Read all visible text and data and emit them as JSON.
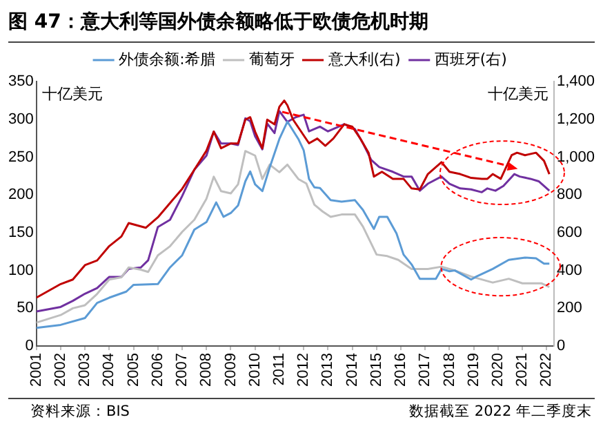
{
  "chart_data": {
    "type": "line",
    "title": "图 47：意大利等国外债余额略低于欧债危机时期",
    "ylabel": "十亿美元",
    "y2label": "十亿美元",
    "annotations": [
      "资料来源：BIS",
      "数据截至 2022 年二季度末"
    ],
    "xlim": [
      2001,
      2022.3
    ],
    "xticks": [
      2001,
      2002,
      2003,
      2004,
      2005,
      2006,
      2007,
      2008,
      2009,
      2010,
      2011,
      2012,
      2013,
      2014,
      2015,
      2016,
      2017,
      2018,
      2019,
      2020,
      2021,
      2022
    ],
    "ylim": [
      0,
      350
    ],
    "yticks": [
      0,
      50,
      100,
      150,
      200,
      250,
      300,
      350
    ],
    "y2lim": [
      0,
      1400
    ],
    "y2ticks": [
      0,
      200,
      400,
      600,
      800,
      {
        "value": 1000,
        "label": "1,000"
      },
      {
        "value": 1200,
        "label": "1,200"
      },
      {
        "value": 1400,
        "label": "1,400"
      }
    ],
    "legend": "top",
    "grid": false,
    "marker": "none",
    "line_style": "solid",
    "series": [
      {
        "name": "外债余额:希腊",
        "color": "#5b9bd5",
        "x": [
          2001,
          2002,
          2003,
          2003.5,
          2004,
          2004.7,
          2005,
          2006,
          2006.5,
          2007,
          2007.5,
          2008,
          2008.4,
          2008.7,
          2009,
          2009.3,
          2009.6,
          2009.8,
          2010,
          2010.3,
          2010.6,
          2011,
          2011.33,
          2011.78,
          2012,
          2012.22,
          2012.44,
          2012.67,
          2013.11,
          2013.56,
          2014.11,
          2014.44,
          2014.89,
          2015.11,
          2015.44,
          2015.82,
          2016.11,
          2016.44,
          2016.78,
          2017.44,
          2017.67,
          2018,
          2018.22,
          2018.89,
          2019.11,
          2019.78,
          2020.44,
          2021.11,
          2021.56,
          2021.89,
          2022.11
        ],
        "values": [
          24,
          28,
          37,
          57,
          64,
          72,
          81,
          82,
          104,
          120,
          154,
          164,
          190,
          171,
          176,
          186,
          218,
          231,
          214,
          205,
          236,
          274,
          297,
          274,
          259,
          221,
          210,
          209,
          193,
          191,
          193,
          180,
          155,
          171,
          171,
          149,
          121,
          108,
          89,
          89,
          102,
          99,
          100,
          88,
          92,
          102,
          114,
          117,
          116,
          109,
          109
        ]
      },
      {
        "name": "葡萄牙",
        "color": "#bfbfbf",
        "x": [
          2001,
          2002,
          2002.5,
          2003,
          2003.5,
          2004,
          2004.5,
          2004.8,
          2005.3,
          2005.6,
          2006,
          2006.5,
          2007,
          2007.5,
          2008,
          2008.3,
          2008.6,
          2009,
          2009.3,
          2009.6,
          2010,
          2010.3,
          2010.6,
          2011,
          2011.33,
          2011.78,
          2012.11,
          2012.44,
          2012.78,
          2013.11,
          2013.56,
          2014.11,
          2014.44,
          2015.0,
          2015.44,
          2015.89,
          2016.44,
          2017.11,
          2017.67,
          2018.22,
          2018.89,
          2019.78,
          2020.44,
          2021,
          2021.78,
          2022.11
        ],
        "values": [
          31,
          41,
          50,
          54,
          69,
          88,
          91,
          104,
          101,
          98,
          120,
          132,
          151,
          167,
          195,
          224,
          205,
          202,
          214,
          258,
          252,
          221,
          240,
          230,
          240,
          221,
          215,
          187,
          178,
          171,
          174,
          174,
          158,
          121,
          119,
          114,
          102,
          102,
          105,
          100,
          92,
          84,
          89,
          83,
          83,
          78
        ]
      },
      {
        "name": "意大利(右)",
        "color": "#c00000",
        "axis": "y2",
        "x": [
          2001,
          2002,
          2002.5,
          2003,
          2003.5,
          2004,
          2004.5,
          2004.8,
          2005.5,
          2006,
          2006.5,
          2007,
          2007.5,
          2008,
          2008.3,
          2008.6,
          2009,
          2009.3,
          2009.6,
          2009.8,
          2010,
          2010.3,
          2010.5,
          2010.8,
          2011,
          2011.2,
          2011.33,
          2011.56,
          2011.89,
          2012.22,
          2012.56,
          2012.89,
          2013.22,
          2013.67,
          2014,
          2014.33,
          2014.67,
          2014.89,
          2015.22,
          2015.67,
          2016.11,
          2016.44,
          2016.78,
          2017.11,
          2017.67,
          2018,
          2018.44,
          2018.89,
          2019.33,
          2019.56,
          2019.78,
          2020.11,
          2020.56,
          2020.78,
          2021.11,
          2021.56,
          2021.89,
          2022.11
        ],
        "values": [
          256,
          328,
          352,
          428,
          453,
          529,
          580,
          651,
          626,
          681,
          757,
          832,
          933,
          1034,
          1135,
          1047,
          1072,
          1072,
          1198,
          1211,
          1135,
          1047,
          1198,
          1173,
          1266,
          1299,
          1274,
          1199,
          1136,
          1073,
          1098,
          1060,
          1098,
          1174,
          1161,
          1098,
          1023,
          897,
          922,
          885,
          885,
          834,
          829,
          910,
          973,
          922,
          910,
          890,
          885,
          885,
          910,
          885,
          1010,
          1023,
          1010,
          1023,
          980,
          910
        ]
      },
      {
        "name": "西班牙(右)",
        "color": "#7030a0",
        "axis": "y2",
        "x": [
          2001,
          2002,
          2002.5,
          2003,
          2003.5,
          2004,
          2004.5,
          2004.8,
          2005.3,
          2005.6,
          2006,
          2006.5,
          2007,
          2007.5,
          2008,
          2008.3,
          2008.6,
          2009,
          2009.3,
          2009.6,
          2009.8,
          2010,
          2010.3,
          2010.5,
          2010.8,
          2011,
          2011.33,
          2011.67,
          2012,
          2012.22,
          2012.67,
          2013,
          2013.67,
          2014.11,
          2014.44,
          2014.78,
          2015.11,
          2015.67,
          2016.11,
          2016.44,
          2016.78,
          2017.11,
          2017.67,
          2018,
          2018.44,
          2018.89,
          2019.33,
          2019.56,
          2019.89,
          2020.22,
          2020.67,
          2020.89,
          2021.33,
          2021.67,
          2022.11
        ],
        "values": [
          183,
          207,
          239,
          277,
          307,
          366,
          366,
          409,
          416,
          454,
          630,
          668,
          794,
          933,
          1008,
          1135,
          1072,
          1072,
          1064,
          1205,
          1190,
          1110,
          1041,
          1177,
          1127,
          1243,
          1186,
          1211,
          1224,
          1136,
          1161,
          1136,
          1174,
          1148,
          1073,
          985,
          947,
          922,
          897,
          897,
          822,
          859,
          897,
          859,
          834,
          829,
          814,
          834,
          822,
          847,
          910,
          897,
          885,
          872,
          822
        ]
      }
    ]
  }
}
